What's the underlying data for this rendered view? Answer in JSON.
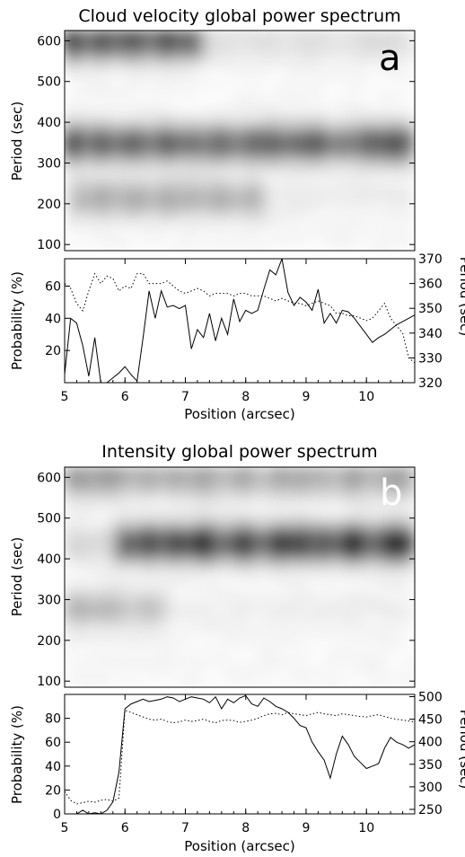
{
  "chart_data": [
    {
      "type": "heatmap",
      "title": "Cloud velocity global power spectrum",
      "panel_label": "a",
      "ylabel": "Period (sec)",
      "xlim": [
        5,
        10.8
      ],
      "ylim": [
        85,
        625
      ],
      "yticks": [
        100,
        200,
        300,
        400,
        500,
        600
      ],
      "colormap": "grayscale inverted (dark = high power)",
      "dark_bands": [
        {
          "period": 350,
          "x_range": [
            5,
            10.8
          ],
          "strength": 0.7
        },
        {
          "period": 600,
          "x_range": [
            5,
            7
          ],
          "strength": 0.75
        },
        {
          "period": 215,
          "x_range": [
            5.5,
            8
          ],
          "strength": 0.35
        }
      ]
    },
    {
      "type": "line",
      "xlabel": "Position (arcsec)",
      "ylabel": "Probability (%)",
      "ylabel_right": "Period (sec)",
      "xlim": [
        5,
        10.8
      ],
      "ylim": [
        0,
        77
      ],
      "ylim_right": [
        320,
        370
      ],
      "xticks": [
        5,
        6,
        7,
        8,
        9,
        10
      ],
      "yticks": [
        20,
        40,
        60
      ],
      "yticks_right": [
        320,
        330,
        340,
        350,
        360,
        370
      ],
      "series": [
        {
          "style": "solid",
          "axis": "left",
          "x": [
            5.0,
            5.1,
            5.2,
            5.3,
            5.4,
            5.5,
            5.6,
            5.7,
            5.8,
            5.9,
            6.0,
            6.1,
            6.2,
            6.3,
            6.4,
            6.5,
            6.6,
            6.7,
            6.8,
            6.9,
            7.0,
            7.1,
            7.2,
            7.3,
            7.4,
            7.5,
            7.6,
            7.7,
            7.8,
            7.9,
            8.0,
            8.1,
            8.2,
            8.3,
            8.4,
            8.5,
            8.6,
            8.7,
            8.8,
            8.9,
            9.0,
            9.1,
            9.2,
            9.3,
            9.4,
            9.5,
            9.6,
            9.7,
            9.8,
            9.9,
            10.0,
            10.1,
            10.2,
            10.3,
            10.4,
            10.5,
            10.6,
            10.7,
            10.8
          ],
          "y": [
            5,
            40,
            37,
            23,
            4,
            28,
            0,
            0,
            3,
            6,
            10,
            5,
            1,
            28,
            57,
            40,
            57,
            47,
            48,
            46,
            48,
            21,
            33,
            28,
            43,
            26,
            40,
            30,
            52,
            38,
            45,
            43,
            45,
            58,
            70,
            67,
            77,
            56,
            48,
            53,
            50,
            45,
            58,
            37,
            43,
            37,
            45,
            44,
            40,
            35,
            30,
            25,
            28,
            30,
            33,
            36,
            38,
            40,
            42
          ]
        },
        {
          "style": "dotted",
          "axis": "right",
          "x": [
            5.0,
            5.1,
            5.2,
            5.3,
            5.4,
            5.5,
            5.6,
            5.7,
            5.8,
            5.9,
            6.0,
            6.1,
            6.2,
            6.3,
            6.4,
            6.5,
            6.6,
            6.7,
            6.8,
            6.9,
            7.0,
            7.1,
            7.2,
            7.3,
            7.4,
            7.5,
            7.6,
            7.7,
            7.8,
            7.9,
            8.0,
            8.1,
            8.2,
            8.3,
            8.4,
            8.5,
            8.6,
            8.7,
            8.8,
            8.9,
            9.0,
            9.1,
            9.2,
            9.3,
            9.4,
            9.5,
            9.6,
            9.7,
            9.8,
            9.9,
            10.0,
            10.1,
            10.2,
            10.3,
            10.4,
            10.5,
            10.6,
            10.7,
            10.8
          ],
          "y": [
            360,
            358,
            352,
            349,
            357,
            364,
            360,
            363,
            362,
            357,
            359,
            358,
            364,
            364,
            360,
            360,
            360,
            361,
            359,
            357,
            356,
            357,
            358,
            357,
            355,
            356,
            356,
            356,
            355,
            356,
            356,
            355,
            355,
            355,
            354,
            353,
            354,
            353,
            352,
            352,
            351,
            352,
            353,
            352,
            351,
            348,
            348,
            347,
            347,
            346,
            345,
            346,
            349,
            352,
            346,
            343,
            340,
            330,
            328
          ]
        }
      ]
    },
    {
      "type": "heatmap",
      "title": "Intensity global power spectrum",
      "panel_label": "b",
      "ylabel": "Period (sec)",
      "xlim": [
        5,
        10.8
      ],
      "ylim": [
        85,
        625
      ],
      "yticks": [
        100,
        200,
        300,
        400,
        500,
        600
      ],
      "colormap": "grayscale inverted (dark = high power)",
      "dark_bands": [
        {
          "period": 440,
          "x_range": [
            6.2,
            10.8
          ],
          "strength": 0.85
        },
        {
          "period": 600,
          "x_range": [
            5,
            10.8
          ],
          "strength": 0.35
        },
        {
          "period": 280,
          "x_range": [
            5,
            6.5
          ],
          "strength": 0.25
        }
      ]
    },
    {
      "type": "line",
      "xlabel": "Position (arcsec)",
      "ylabel": "Probability (%)",
      "ylabel_right": "Period (sec)",
      "xlim": [
        5,
        10.8
      ],
      "ylim": [
        0,
        100
      ],
      "ylim_right": [
        240,
        505
      ],
      "xticks": [
        5,
        6,
        7,
        8,
        9,
        10
      ],
      "yticks": [
        0,
        20,
        40,
        60,
        80
      ],
      "yticks_right": [
        250,
        300,
        350,
        400,
        450,
        500
      ],
      "series": [
        {
          "style": "solid",
          "axis": "left",
          "x": [
            5.0,
            5.1,
            5.2,
            5.3,
            5.4,
            5.5,
            5.6,
            5.7,
            5.8,
            5.9,
            6.0,
            6.1,
            6.2,
            6.3,
            6.4,
            6.5,
            6.6,
            6.7,
            6.8,
            6.9,
            7.0,
            7.1,
            7.2,
            7.3,
            7.4,
            7.5,
            7.6,
            7.7,
            7.8,
            7.9,
            8.0,
            8.1,
            8.2,
            8.3,
            8.4,
            8.5,
            8.6,
            8.7,
            8.8,
            8.9,
            9.0,
            9.1,
            9.2,
            9.3,
            9.4,
            9.5,
            9.6,
            9.7,
            9.8,
            9.9,
            10.0,
            10.1,
            10.2,
            10.3,
            10.4,
            10.5,
            10.6,
            10.7,
            10.8
          ],
          "y": [
            0,
            0,
            0,
            3,
            0,
            1,
            0,
            3,
            10,
            35,
            88,
            92,
            94,
            96,
            94,
            95,
            96,
            98,
            97,
            94,
            96,
            98,
            97,
            96,
            93,
            98,
            88,
            96,
            93,
            97,
            99,
            92,
            90,
            97,
            94,
            90,
            88,
            85,
            80,
            74,
            72,
            60,
            52,
            45,
            30,
            50,
            65,
            58,
            48,
            43,
            38,
            40,
            42,
            55,
            64,
            60,
            58,
            55,
            58
          ]
        },
        {
          "style": "dotted",
          "axis": "right",
          "x": [
            5.0,
            5.1,
            5.2,
            5.3,
            5.4,
            5.5,
            5.6,
            5.7,
            5.8,
            5.9,
            6.0,
            6.1,
            6.2,
            6.3,
            6.4,
            6.5,
            6.6,
            6.7,
            6.8,
            6.9,
            7.0,
            7.1,
            7.2,
            7.3,
            7.4,
            7.5,
            7.6,
            7.7,
            7.8,
            7.9,
            8.0,
            8.1,
            8.2,
            8.3,
            8.4,
            8.5,
            8.6,
            8.7,
            8.8,
            8.9,
            9.0,
            9.1,
            9.2,
            9.3,
            9.4,
            9.5,
            9.6,
            9.7,
            9.8,
            9.9,
            10.0,
            10.1,
            10.2,
            10.3,
            10.4,
            10.5,
            10.6,
            10.7,
            10.8
          ],
          "y": [
            290,
            270,
            262,
            265,
            268,
            266,
            270,
            272,
            268,
            275,
            470,
            465,
            460,
            455,
            450,
            448,
            450,
            445,
            442,
            444,
            448,
            445,
            447,
            450,
            445,
            442,
            447,
            448,
            447,
            443,
            445,
            448,
            452,
            458,
            462,
            463,
            460,
            465,
            462,
            460,
            458,
            462,
            465,
            462,
            460,
            458,
            462,
            460,
            458,
            456,
            455,
            458,
            460,
            456,
            452,
            450,
            448,
            446,
            444
          ]
        }
      ]
    }
  ]
}
